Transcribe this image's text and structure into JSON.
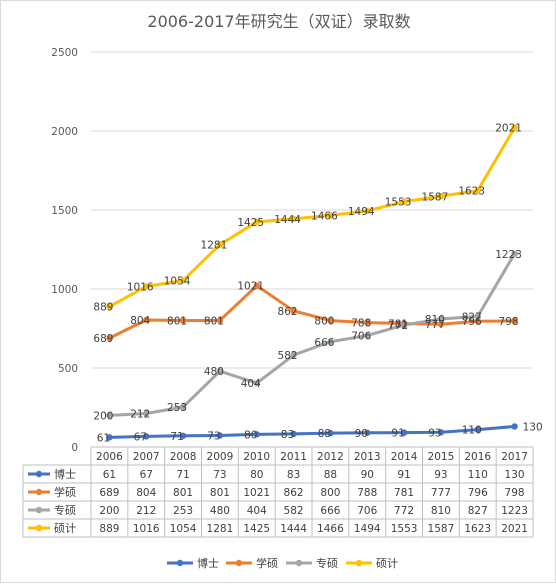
{
  "chart_data": {
    "type": "line",
    "title": "2006-2017年研究生（双证）录取数",
    "categories": [
      "2006",
      "2007",
      "2008",
      "2009",
      "2010",
      "2011",
      "2012",
      "2013",
      "2014",
      "2015",
      "2016",
      "2017"
    ],
    "ylim": [
      0,
      2500
    ],
    "yticks": [
      0,
      500,
      1000,
      1500,
      2000,
      2500
    ],
    "grid": true,
    "legend_position": "bottom",
    "data_table": true,
    "series": [
      {
        "name": "博士",
        "color": "#4472C4",
        "values": [
          61,
          67,
          71,
          73,
          80,
          83,
          88,
          90,
          91,
          93,
          110,
          130
        ]
      },
      {
        "name": "学硕",
        "color": "#ED7D31",
        "values": [
          689,
          804,
          801,
          801,
          1021,
          862,
          800,
          788,
          781,
          777,
          796,
          798
        ]
      },
      {
        "name": "专硕",
        "color": "#A5A5A5",
        "values": [
          200,
          212,
          253,
          480,
          404,
          582,
          666,
          706,
          772,
          810,
          827,
          1223
        ]
      },
      {
        "name": "硕计",
        "color": "#FFC000",
        "values": [
          889,
          1016,
          1054,
          1281,
          1425,
          1444,
          1466,
          1494,
          1553,
          1587,
          1623,
          2021
        ]
      }
    ]
  }
}
